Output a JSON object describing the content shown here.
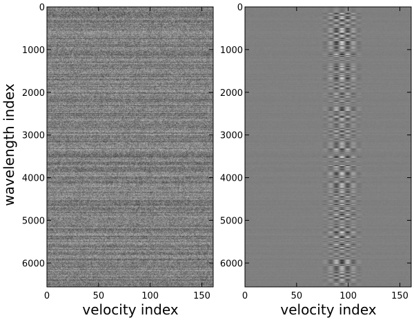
{
  "chart_data": [
    {
      "type": "heatmap",
      "panel": "left",
      "title": "",
      "xlabel": "velocity index",
      "ylabel": "wavelength index",
      "xlim": [
        0,
        161
      ],
      "ylim": [
        6560,
        0
      ],
      "x_ticks": [
        0,
        50,
        100,
        150
      ],
      "x_tick_labels": [
        "0",
        "50",
        "100",
        "150"
      ],
      "y_ticks": [
        0,
        1000,
        2000,
        3000,
        4000,
        5000,
        6000
      ],
      "y_tick_labels": [
        "0",
        "1000",
        "2000",
        "3000",
        "4000",
        "5000",
        "6000"
      ],
      "colormap": "gray",
      "pattern": "broadband noise across all velocity indices, horizontally streaked by wavelength",
      "noise_amplitude": 0.55,
      "signal_band_center": 94,
      "signal_band_width": 18,
      "signal_amplitude": 0.1,
      "grid": false
    },
    {
      "type": "heatmap",
      "panel": "right",
      "title": "",
      "xlabel": "velocity index",
      "ylabel": "",
      "xlim": [
        0,
        161
      ],
      "ylim": [
        6560,
        0
      ],
      "x_ticks": [
        0,
        50,
        100,
        150
      ],
      "x_tick_labels": [
        "0",
        "50",
        "100",
        "150"
      ],
      "y_ticks": [
        0,
        1000,
        2000,
        3000,
        4000,
        5000,
        6000
      ],
      "y_tick_labels": [
        "0",
        "1000",
        "2000",
        "3000",
        "4000",
        "5000",
        "6000"
      ],
      "colormap": "gray",
      "pattern": "smooth gray background with a bright/dark vertical band near velocity index 80-110",
      "noise_amplitude": 0.06,
      "signal_band_center": 94,
      "signal_band_width": 18,
      "signal_amplitude": 0.85,
      "grid": false
    }
  ]
}
